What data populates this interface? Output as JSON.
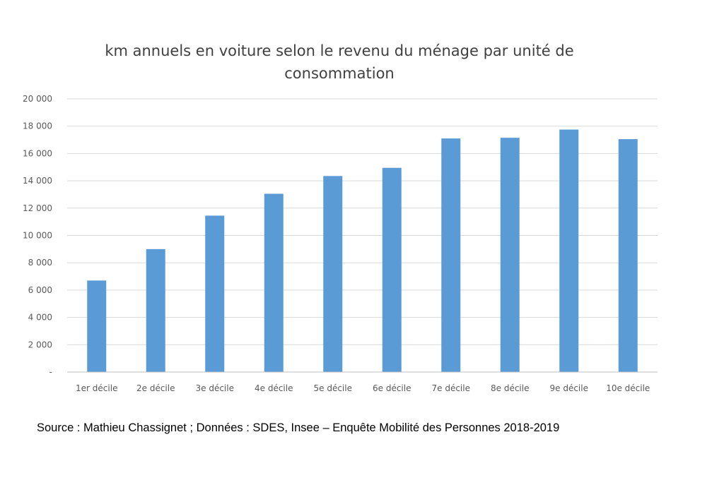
{
  "chart_data": {
    "type": "bar",
    "title_lines": [
      "km annuels en voiture selon le revenu du ménage par unité de",
      "consommation"
    ],
    "xlabel": "",
    "ylabel": "",
    "categories": [
      "1er décile",
      "2e décile",
      "3e décile",
      "4e décile",
      "5e décile",
      "6e décile",
      "7e décile",
      "8e décile",
      "9e décile",
      "10e décile"
    ],
    "values": [
      6700,
      9000,
      11450,
      13050,
      14350,
      14950,
      17100,
      17150,
      17750,
      17050
    ],
    "ylim": [
      0,
      20000
    ],
    "yticks": [
      0,
      2000,
      4000,
      6000,
      8000,
      10000,
      12000,
      14000,
      16000,
      18000,
      20000
    ],
    "ytick_labels": [
      "-",
      "2 000",
      "4 000",
      "6 000",
      "8 000",
      "10 000",
      "12 000",
      "14 000",
      "16 000",
      "18 000",
      "20 000"
    ],
    "grid": true,
    "legend": "none",
    "colors": {
      "bar": "#5b9bd5",
      "grid": "#d9d9d9",
      "axis": "#bfbfbf",
      "text": "#595959"
    }
  },
  "source_note": "Source : Mathieu Chassignet ; Données :  SDES, Insee – Enquête Mobilité des Personnes 2018-2019"
}
